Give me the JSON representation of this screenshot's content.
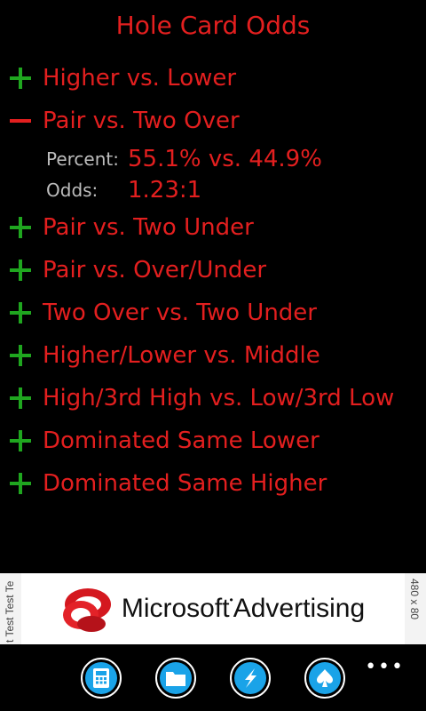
{
  "title": "Hole Card Odds",
  "rows": [
    {
      "label": "Higher vs. Lower",
      "expanded": false
    },
    {
      "label": "Pair vs. Two Over",
      "expanded": true,
      "percent_label": "Percent:",
      "percent_value": "55.1% vs. 44.9%",
      "odds_label": "Odds:",
      "odds_value": "1.23:1"
    },
    {
      "label": "Pair vs. Two Under",
      "expanded": false
    },
    {
      "label": "Pair vs. Over/Under",
      "expanded": false
    },
    {
      "label": "Two Over vs. Two Under",
      "expanded": false
    },
    {
      "label": "Higher/Lower vs. Middle",
      "expanded": false
    },
    {
      "label": "High/3rd High vs. Low/3rd Low",
      "expanded": false
    },
    {
      "label": "Dominated Same Lower",
      "expanded": false
    },
    {
      "label": "Dominated Same Higher",
      "expanded": false
    }
  ],
  "ad": {
    "left_text": "t Test Test Te",
    "brand": "Microsoft",
    "brand_rest": "Advertising",
    "size_text": "480 x 80"
  },
  "appbar": {
    "buttons": [
      "calculator-icon",
      "folder-icon",
      "lightning-icon",
      "spade-icon"
    ],
    "more": "•••"
  },
  "colors": {
    "accent": "#e31f1f",
    "plus": "#1fa61f",
    "icon_bg": "#1aa3e8"
  }
}
